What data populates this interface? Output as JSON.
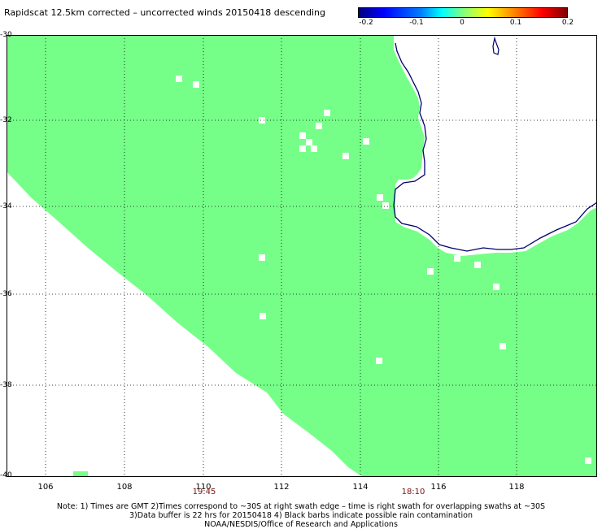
{
  "title": "Rapidscat 12.5km corrected – uncorrected winds 20150418 descending",
  "colorbar": {
    "labels": [
      "-0.2",
      "-0.1",
      "0",
      "0.1",
      "0.2"
    ],
    "colors": [
      "#00007f",
      "#0000ff",
      "#00ffff",
      "#80ff80",
      "#ffff00",
      "#ff0000",
      "#800000"
    ]
  },
  "lat_labels": [
    "-30",
    "-32",
    "-34",
    "-36",
    "-38",
    "-40"
  ],
  "lon_labels": [
    "106",
    "108",
    "110",
    "112",
    "114",
    "116",
    "118"
  ],
  "time_labels": [
    "19:45",
    "18:10"
  ],
  "notes": {
    "line1": "Note: 1) Times are GMT 2)Times correspond to ~30S at right swath edge – time is right swath for overlapping swaths at ~30S",
    "line2": "3)Data buffer is 22 hrs for 20150418 4) Black barbs indicate possible rain contamination",
    "line3": "NOAA/NESDIS/Office of Research and Applications"
  },
  "map": {
    "lon_range": [
      105,
      120
    ],
    "lat_range": [
      -40,
      -30
    ],
    "swath_color": "#76ff88",
    "coast_color": "#00006e",
    "grid_color": "#000000"
  }
}
